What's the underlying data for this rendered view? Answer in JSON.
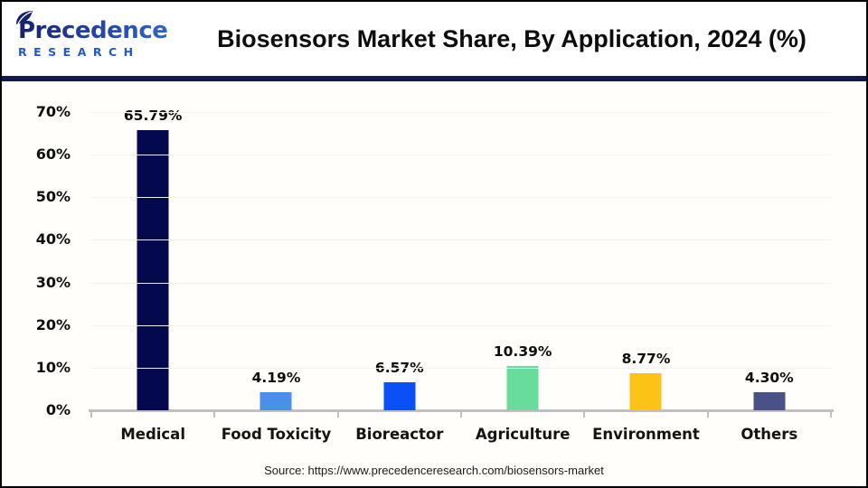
{
  "header": {
    "logo": {
      "word": "Precedence",
      "sub": "RESEARCH"
    },
    "title": "Biosensors Market Share, By Application, 2024 (%)"
  },
  "footer": {
    "source": "Source: https://www.precedenceresearch.com/biosensors-market"
  },
  "colors": {
    "header_divider": "#101a45",
    "logo_navy": "#16226b",
    "logo_blue": "#2e66cf",
    "grid": "#f1f1f1",
    "axis": "#bfbfc4",
    "text": "#0d0d0d"
  },
  "chart_data": {
    "type": "bar",
    "title": "Biosensors Market Share, By Application, 2024 (%)",
    "categories": [
      "Medical",
      "Food Toxicity",
      "Bioreactor",
      "Agriculture",
      "Environment",
      "Others"
    ],
    "values": [
      65.79,
      4.19,
      6.57,
      10.39,
      8.77,
      4.3
    ],
    "value_labels": [
      "65.79%",
      "4.19%",
      "6.57%",
      "10.39%",
      "8.77%",
      "4.30%"
    ],
    "bar_colors": [
      "#04094e",
      "#4a90e8",
      "#0b4ff7",
      "#68dd9b",
      "#fbc315",
      "#4a5187"
    ],
    "xlabel": "",
    "ylabel": "",
    "ylim": [
      0,
      70
    ],
    "y_ticks": [
      0,
      10,
      20,
      30,
      40,
      50,
      60,
      70
    ],
    "y_tick_labels": [
      "0%",
      "10%",
      "20%",
      "30%",
      "40%",
      "50%",
      "60%",
      "70%"
    ],
    "grid": true,
    "legend": "none",
    "source": "Source: https://www.precedenceresearch.com/biosensors-market"
  }
}
